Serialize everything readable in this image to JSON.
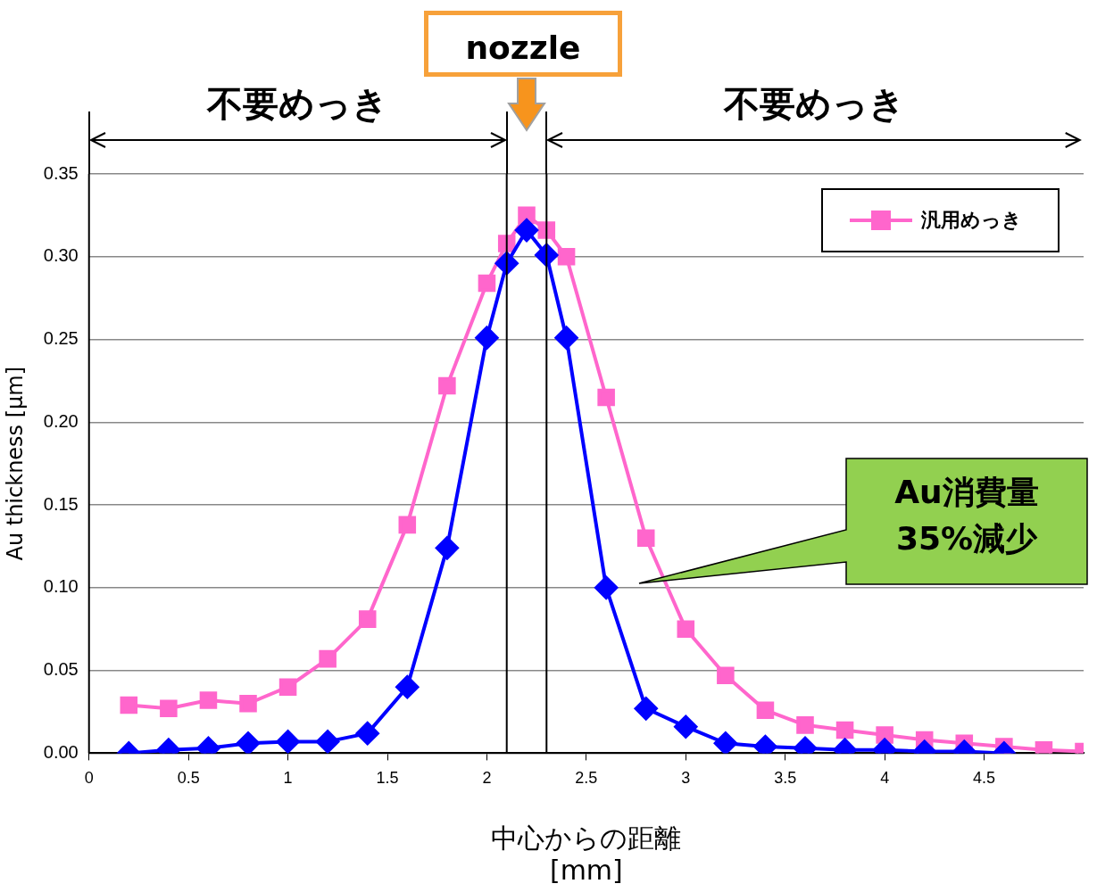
{
  "chart_data": {
    "type": "line",
    "xlabel": "中心からの距離\n[mm]",
    "ylabel": "Au thickness [μm]",
    "x": [
      0.2,
      0.4,
      0.6,
      0.8,
      1.0,
      1.2,
      1.4,
      1.6,
      1.8,
      2.0,
      2.1,
      2.2,
      2.3,
      2.4,
      2.6,
      2.8,
      3.0,
      3.2,
      3.4,
      3.6,
      3.8,
      4.0,
      4.2,
      4.4,
      4.6,
      4.8,
      5.0
    ],
    "series": [
      {
        "color": "#0000ff",
        "marker": "diamond",
        "values": [
          0.0,
          0.002,
          0.003,
          0.006,
          0.007,
          0.007,
          0.012,
          0.04,
          0.124,
          0.251,
          0.296,
          0.316,
          0.301,
          0.251,
          0.1,
          0.027,
          0.016,
          0.006,
          0.004,
          0.003,
          0.002,
          0.002,
          0.001,
          0.001,
          0.0,
          null,
          null
        ]
      },
      {
        "name": "汎用めっき",
        "color": "#ff66cc",
        "marker": "square",
        "values": [
          0.029,
          0.027,
          0.032,
          0.03,
          0.04,
          0.057,
          0.081,
          0.138,
          0.222,
          0.284,
          0.308,
          0.325,
          0.316,
          0.3,
          0.215,
          0.13,
          0.075,
          0.047,
          0.026,
          0.017,
          0.014,
          0.011,
          0.008,
          0.006,
          0.004,
          0.002,
          0.001
        ]
      }
    ],
    "xlim": [
      0,
      5
    ],
    "xticks": [
      0,
      0.5,
      1,
      1.5,
      2,
      2.5,
      3,
      3.5,
      4,
      4.5
    ],
    "ylim": [
      0,
      0.35
    ],
    "yticks": [
      {
        "value": 0,
        "label": "0.00"
      },
      {
        "value": 0.05,
        "label": "0.05"
      },
      {
        "value": 0.1,
        "label": "0.10"
      },
      {
        "value": 0.15,
        "label": "0.15"
      },
      {
        "value": 0.2,
        "label": "0.20"
      },
      {
        "value": 0.25,
        "label": "0.25"
      },
      {
        "value": 0.3,
        "label": "0.30"
      },
      {
        "value": 0.35,
        "label": "0.35"
      }
    ],
    "grid": "y",
    "legend": "top right",
    "line_style": "solid",
    "ref_lines": [
      {
        "axis": "x",
        "value": 0,
        "color": "#000000"
      },
      {
        "axis": "x",
        "value": 2.1,
        "color": "#000000"
      },
      {
        "axis": "x",
        "value": 2.3,
        "color": "#000000"
      }
    ],
    "annotations": [
      "nozzle",
      "不要めっき",
      "不要めっき",
      "Au消費量\n35%減少"
    ]
  }
}
